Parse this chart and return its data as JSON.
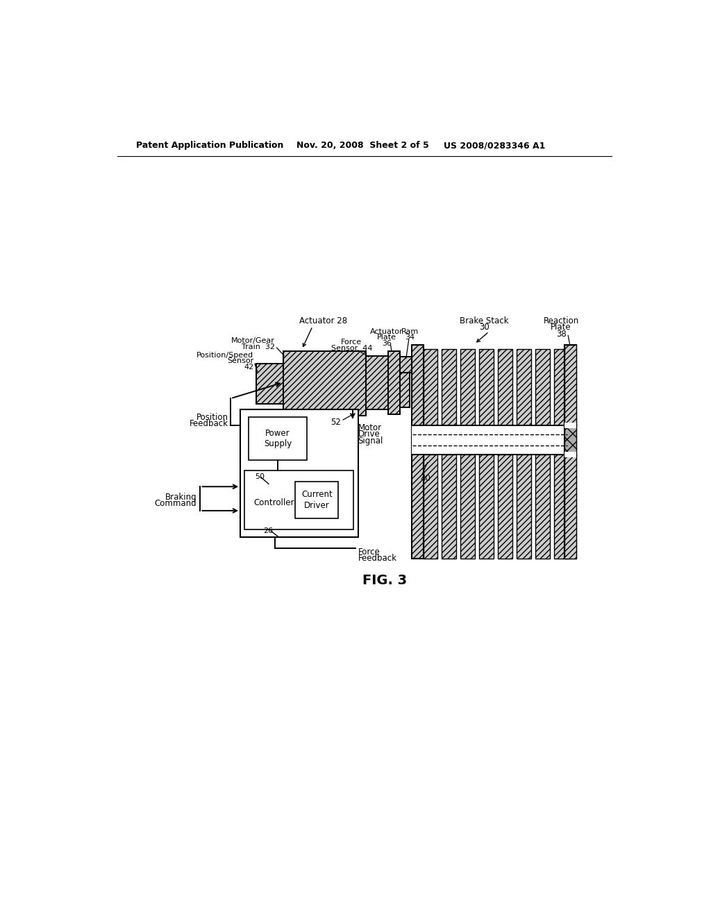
{
  "header_left": "Patent Application Publication",
  "header_mid": "Nov. 20, 2008  Sheet 2 of 5",
  "header_right": "US 2008/0283346 A1",
  "fig_label": "FIG. 3",
  "background_color": "#ffffff"
}
